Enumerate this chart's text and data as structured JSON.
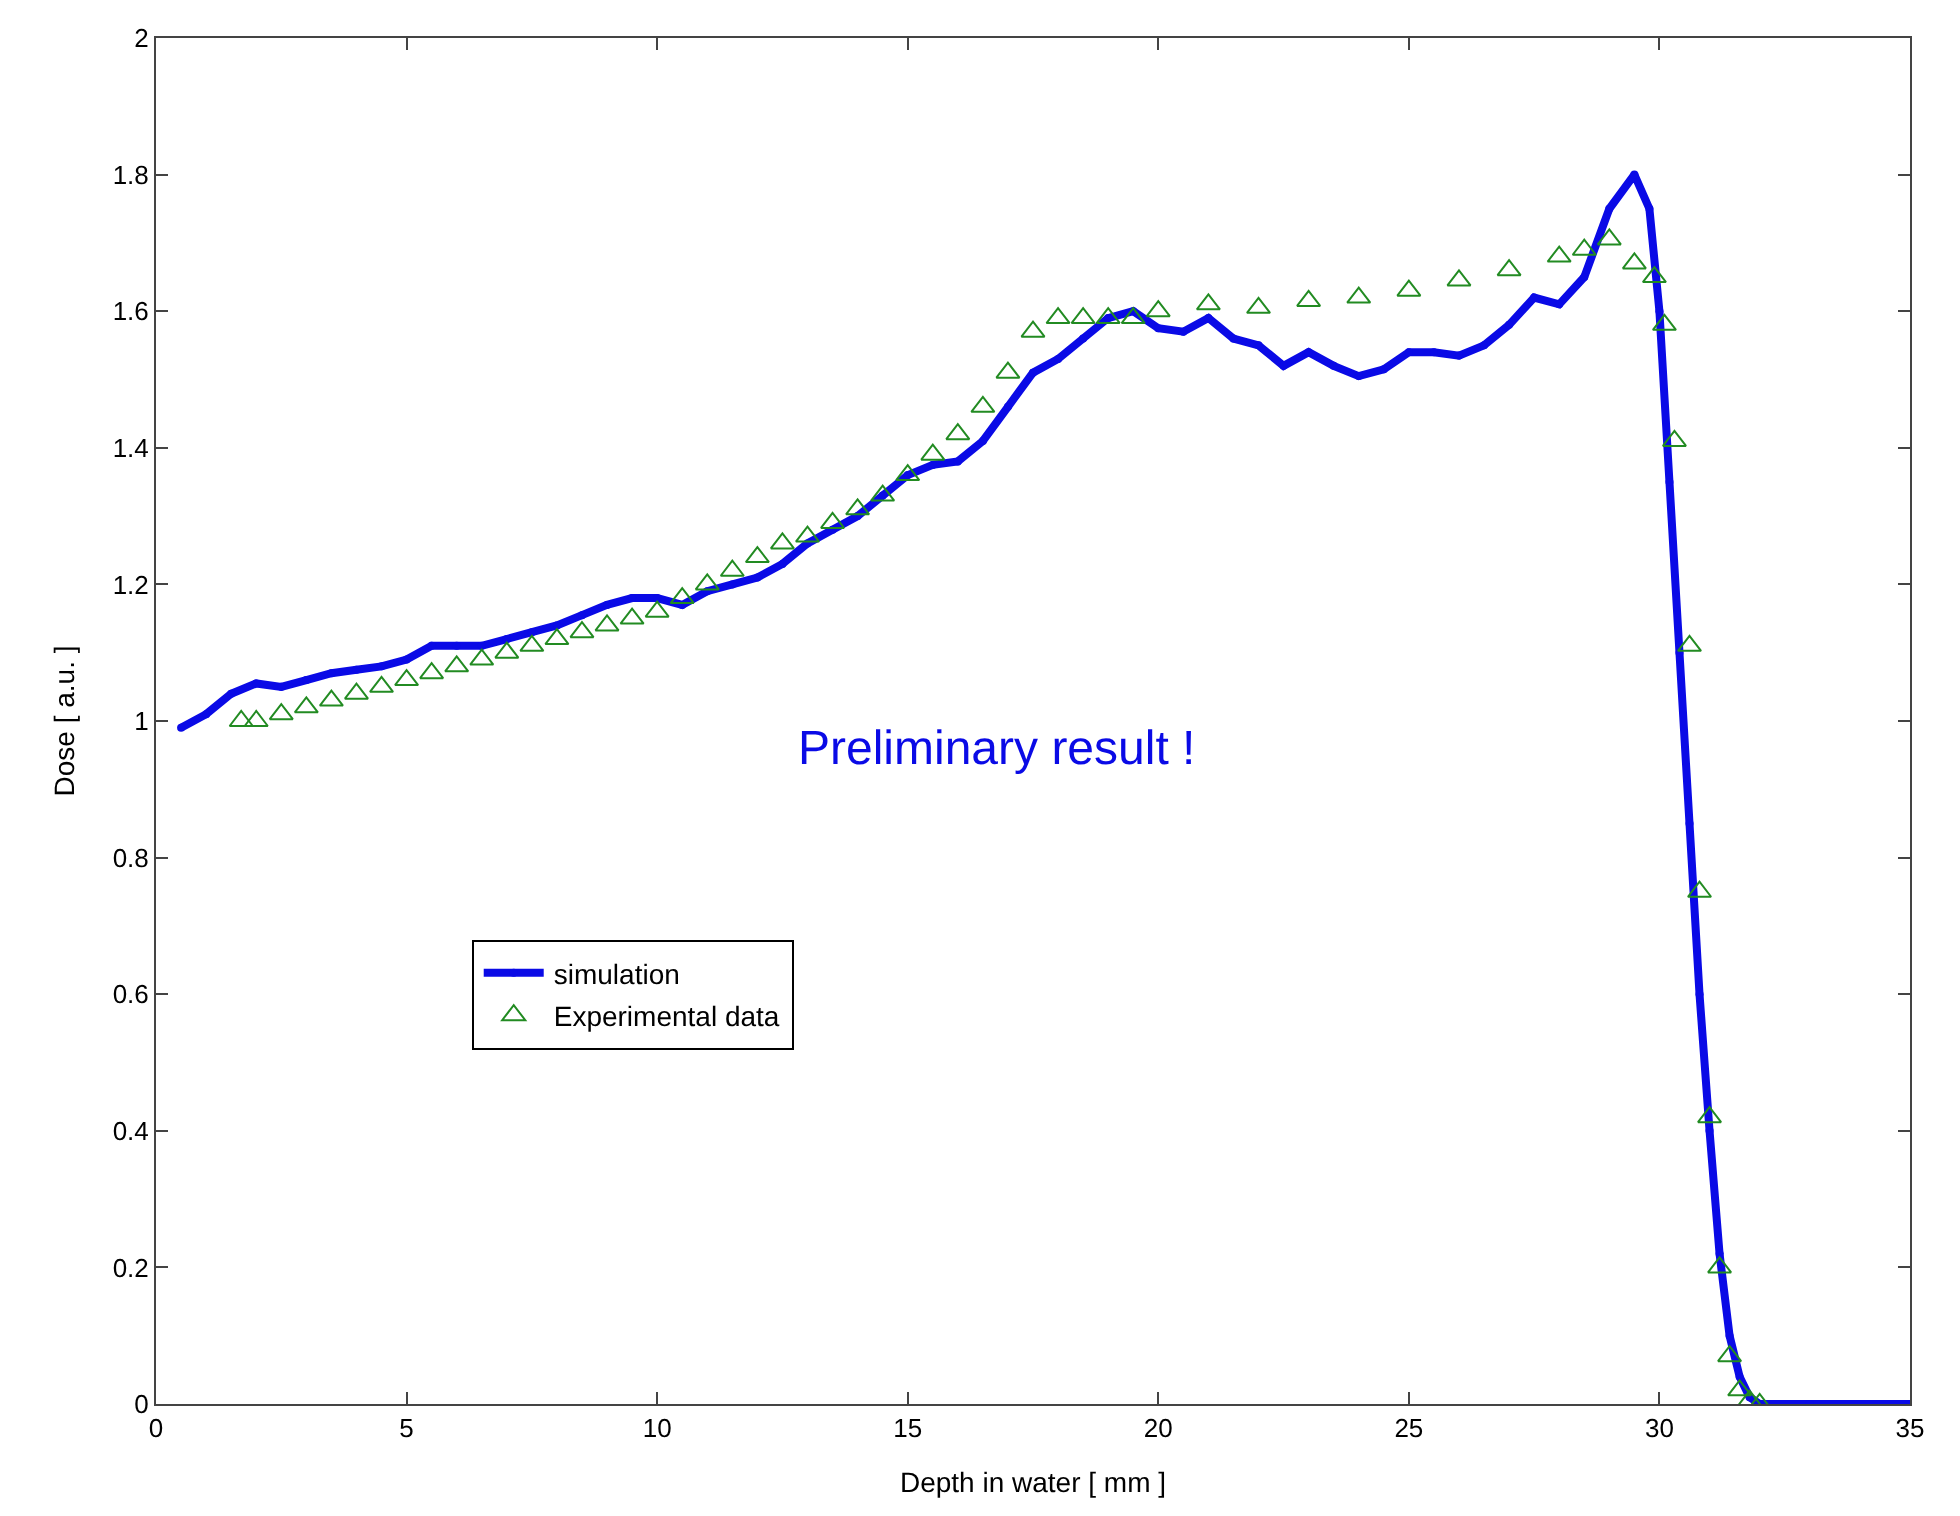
{
  "chart_data": {
    "type": "line",
    "xlabel": "Depth in water [ mm ]",
    "ylabel": "Dose [ a.u. ]",
    "annotations": [
      "Preliminary result !"
    ],
    "xlim": [
      0,
      35
    ],
    "xticks": [
      0,
      5,
      10,
      15,
      20,
      25,
      30,
      35
    ],
    "ylim": [
      0,
      2
    ],
    "yticks": [
      0,
      0.2,
      0.4,
      0.6,
      0.8,
      1,
      1.2,
      1.4,
      1.6,
      1.8,
      2
    ],
    "legend": "bottom left",
    "series": [
      {
        "name": "simulation",
        "marker": "circle",
        "color": "#0a0ae6",
        "x": [
          0.5,
          1,
          1.5,
          2,
          2.5,
          3,
          3.5,
          4,
          4.5,
          5,
          5.5,
          6,
          6.5,
          7,
          7.5,
          8,
          8.5,
          9,
          9.5,
          10,
          10.5,
          11,
          11.5,
          12,
          12.5,
          13,
          13.5,
          14,
          14.5,
          15,
          15.5,
          16,
          16.5,
          17,
          17.5,
          18,
          18.5,
          19,
          19.5,
          20,
          20.5,
          21,
          21.5,
          22,
          22.5,
          23,
          23.5,
          24,
          24.5,
          25,
          25.5,
          26,
          26.5,
          27,
          27.5,
          28,
          28.5,
          29,
          29.5,
          29.8,
          30,
          30.2,
          30.4,
          30.6,
          30.8,
          31,
          31.2,
          31.4,
          31.6,
          31.8,
          32,
          33,
          35
        ],
        "values": [
          0.99,
          1.01,
          1.04,
          1.055,
          1.05,
          1.06,
          1.07,
          1.075,
          1.08,
          1.09,
          1.11,
          1.11,
          1.11,
          1.12,
          1.13,
          1.14,
          1.155,
          1.17,
          1.18,
          1.18,
          1.17,
          1.19,
          1.2,
          1.21,
          1.23,
          1.26,
          1.28,
          1.3,
          1.33,
          1.36,
          1.375,
          1.38,
          1.41,
          1.46,
          1.51,
          1.53,
          1.56,
          1.59,
          1.6,
          1.575,
          1.57,
          1.59,
          1.56,
          1.55,
          1.52,
          1.54,
          1.52,
          1.505,
          1.515,
          1.54,
          1.54,
          1.535,
          1.55,
          1.58,
          1.62,
          1.61,
          1.65,
          1.75,
          1.8,
          1.75,
          1.6,
          1.35,
          1.1,
          0.85,
          0.6,
          0.4,
          0.22,
          0.1,
          0.04,
          0.01,
          0,
          0,
          0
        ]
      },
      {
        "name": "Experimental data",
        "type": "scatter",
        "marker": "triangle",
        "color": "#228b22",
        "x": [
          1.7,
          2,
          2.5,
          3,
          3.5,
          4,
          4.5,
          5,
          5.5,
          6,
          6.5,
          7,
          7.5,
          8,
          8.5,
          9,
          9.5,
          10,
          10.5,
          11,
          11.5,
          12,
          12.5,
          13,
          13.5,
          14,
          14.5,
          15,
          15.5,
          16,
          16.5,
          17,
          17.5,
          18,
          18.5,
          19,
          19.5,
          20,
          21,
          22,
          23,
          24,
          25,
          26,
          27,
          28,
          28.5,
          29,
          29.5,
          29.9,
          30.1,
          30.3,
          30.6,
          30.8,
          31,
          31.2,
          31.4,
          31.6,
          31.8,
          32
        ],
        "values": [
          1,
          1,
          1.01,
          1.02,
          1.03,
          1.04,
          1.05,
          1.06,
          1.07,
          1.08,
          1.09,
          1.1,
          1.11,
          1.12,
          1.13,
          1.14,
          1.15,
          1.16,
          1.18,
          1.2,
          1.22,
          1.24,
          1.26,
          1.27,
          1.29,
          1.31,
          1.33,
          1.36,
          1.39,
          1.42,
          1.46,
          1.51,
          1.57,
          1.59,
          1.59,
          1.59,
          1.59,
          1.6,
          1.61,
          1.605,
          1.615,
          1.62,
          1.63,
          1.645,
          1.66,
          1.68,
          1.69,
          1.705,
          1.67,
          1.65,
          1.58,
          1.41,
          1.11,
          0.75,
          0.42,
          0.2,
          0.07,
          0.02,
          0.005,
          0
        ]
      }
    ]
  }
}
